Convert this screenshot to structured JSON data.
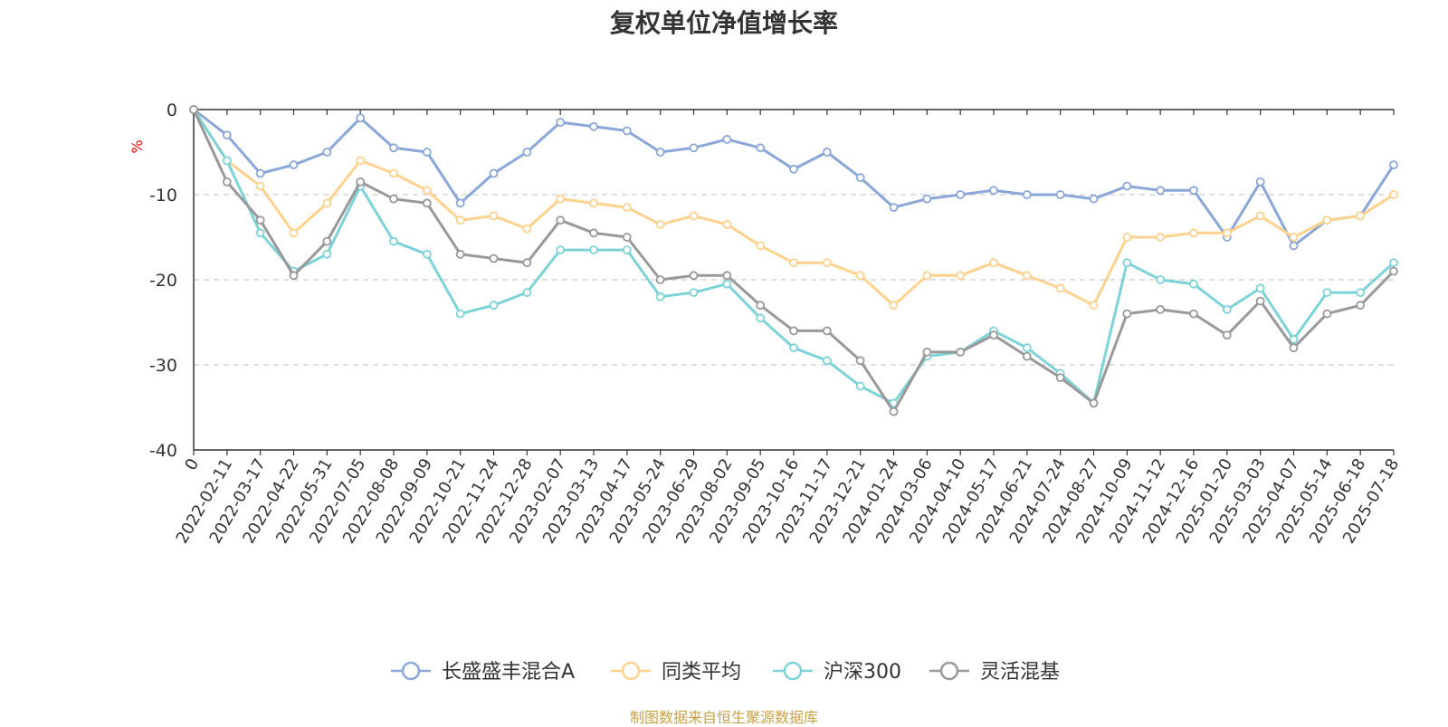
{
  "title": "复权单位净值增长率",
  "source_note": "制图数据来自恒生聚源数据库",
  "chart_data": {
    "type": "line",
    "title": "复权单位净值增长率",
    "ylabel": "%",
    "ylim": [
      -40,
      0
    ],
    "yticks": [
      0,
      -10,
      -20,
      -30,
      -40
    ],
    "grid": true,
    "legend_position": "bottom-center",
    "categories": [
      "0",
      "2022-02-11",
      "2022-03-17",
      "2022-04-22",
      "2022-05-31",
      "2022-07-05",
      "2022-08-08",
      "2022-09-09",
      "2022-10-21",
      "2022-11-24",
      "2022-12-28",
      "2023-02-07",
      "2023-03-13",
      "2023-04-17",
      "2023-05-24",
      "2023-06-29",
      "2023-08-02",
      "2023-09-05",
      "2023-10-16",
      "2023-11-17",
      "2023-12-21",
      "2024-01-24",
      "2024-03-06",
      "2024-04-10",
      "2024-05-17",
      "2024-06-21",
      "2024-07-24",
      "2024-08-27",
      "2024-10-09",
      "2024-11-12",
      "2024-12-16",
      "2025-01-20",
      "2025-03-03",
      "2025-04-07",
      "2025-05-14",
      "2025-06-18",
      "2025-07-18"
    ],
    "series": [
      {
        "name": "长盛盛丰混合A",
        "color": "#8ba7d8",
        "values": [
          0,
          -3,
          -7.5,
          -6.5,
          -5,
          -1,
          -4.5,
          -5,
          -11,
          -7.5,
          -5,
          -1.5,
          -2,
          -2.5,
          -5,
          -4.5,
          -3.5,
          -4.5,
          -7,
          -5,
          -8,
          -11.5,
          -10.5,
          -10,
          -9.5,
          -10,
          -10,
          -10.5,
          -9,
          -9.5,
          -9.5,
          -15,
          -8.5,
          -16,
          -13,
          -12.5,
          -6.5
        ]
      },
      {
        "name": "同类平均",
        "color": "#fdd28e",
        "values": [
          0,
          -6,
          -9,
          -14.5,
          -11,
          -6,
          -7.5,
          -9.5,
          -13,
          -12.5,
          -14,
          -10.5,
          -11,
          -11.5,
          -13.5,
          -12.5,
          -13.5,
          -16,
          -18,
          -18,
          -19.5,
          -23,
          -19.5,
          -19.5,
          -18,
          -19.5,
          -21,
          -23,
          -15,
          -15,
          -14.5,
          -14.5,
          -12.5,
          -15,
          -13,
          -12.5,
          -10
        ]
      },
      {
        "name": "沪深300",
        "color": "#7dd3d8",
        "values": [
          0,
          -6,
          -14.5,
          -19,
          -17,
          -9,
          -15.5,
          -17,
          -24,
          -23,
          -21.5,
          -16.5,
          -16.5,
          -16.5,
          -22,
          -21.5,
          -20.5,
          -24.5,
          -28,
          -29.5,
          -32.5,
          -34.5,
          -29,
          -28.5,
          -26,
          -28,
          -31,
          -34.5,
          -18,
          -20,
          -20.5,
          -23.5,
          -21,
          -27,
          -21.5,
          -21.5,
          -18
        ]
      },
      {
        "name": "灵活混基",
        "color": "#999999",
        "values": [
          0,
          -8.5,
          -13,
          -19.5,
          -15.5,
          -8.5,
          -10.5,
          -11,
          -17,
          -17.5,
          -18,
          -13,
          -14.5,
          -15,
          -20,
          -19.5,
          -19.5,
          -23,
          -26,
          -26,
          -29.5,
          -35.5,
          -28.5,
          -28.5,
          -26.5,
          -29,
          -31.5,
          -34.5,
          -24,
          -23.5,
          -24,
          -26.5,
          -22.5,
          -28,
          -24,
          -23,
          -19
        ]
      }
    ]
  }
}
